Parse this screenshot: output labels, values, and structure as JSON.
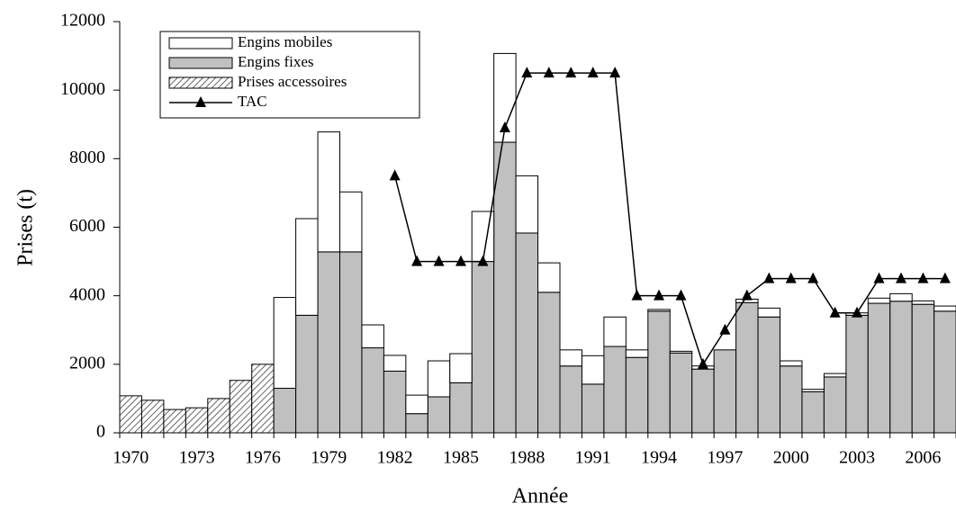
{
  "chart_data": {
    "type": "bar",
    "x_label": "Année",
    "y_label": "Prises (t)",
    "categories": [
      "1970",
      null,
      null,
      "1973",
      null,
      null,
      "1976",
      null,
      null,
      "1979",
      null,
      null,
      "1982",
      null,
      null,
      "1985",
      null,
      null,
      "1988",
      null,
      null,
      "1991",
      null,
      null,
      "1994",
      null,
      null,
      "1997",
      null,
      null,
      "2000",
      null,
      null,
      "2003",
      null,
      null,
      "2006",
      null
    ],
    "stacked": true,
    "series": [
      {
        "name": "Prises accessoires",
        "color": "#808080",
        "pattern": "hatch",
        "values": [
          1080,
          950,
          680,
          730,
          1000,
          1530,
          2000,
          null,
          null,
          null,
          null,
          null,
          null,
          null,
          null,
          null,
          null,
          null,
          null,
          null,
          null,
          null,
          null,
          null,
          null,
          null,
          null,
          null,
          null,
          null,
          null,
          null,
          null,
          null,
          null,
          null,
          null,
          null
        ]
      },
      {
        "name": "Engins fixes",
        "color": "#c0c0c0",
        "values": [
          null,
          null,
          null,
          null,
          null,
          null,
          null,
          1300,
          3430,
          5280,
          5280,
          2480,
          1800,
          560,
          1050,
          1460,
          5000,
          8480,
          5830,
          4100,
          1950,
          1420,
          2520,
          2200,
          3550,
          2330,
          1860,
          2420,
          3800,
          3380,
          1950,
          1200,
          1630,
          3430,
          3780,
          3840,
          3750,
          3550
        ]
      },
      {
        "name": "Engins mobiles",
        "color": "#ffffff",
        "values": [
          null,
          null,
          null,
          null,
          null,
          null,
          null,
          2650,
          2820,
          3500,
          1750,
          670,
          460,
          540,
          1050,
          850,
          1460,
          2590,
          1670,
          860,
          470,
          830,
          860,
          220,
          50,
          50,
          90,
          0,
          100,
          260,
          150,
          70,
          100,
          70,
          150,
          220,
          100,
          150
        ]
      },
      {
        "name": "TAC",
        "color": "#000000",
        "kind": "line",
        "values": [
          null,
          null,
          null,
          null,
          null,
          null,
          null,
          null,
          null,
          null,
          null,
          null,
          7500,
          5000,
          5000,
          5000,
          5000,
          8900,
          10500,
          10500,
          10500,
          10500,
          10500,
          4000,
          4000,
          4000,
          2000,
          3000,
          4000,
          4500,
          4500,
          4500,
          3500,
          3500,
          4500,
          4500,
          4500,
          4500
        ]
      }
    ],
    "legend_order": [
      2,
      1,
      0,
      3
    ],
    "legend": "upper left",
    "ylim": [
      0,
      12000
    ],
    "yticks": [
      0,
      2000,
      4000,
      6000,
      8000,
      10000,
      12000
    ]
  }
}
